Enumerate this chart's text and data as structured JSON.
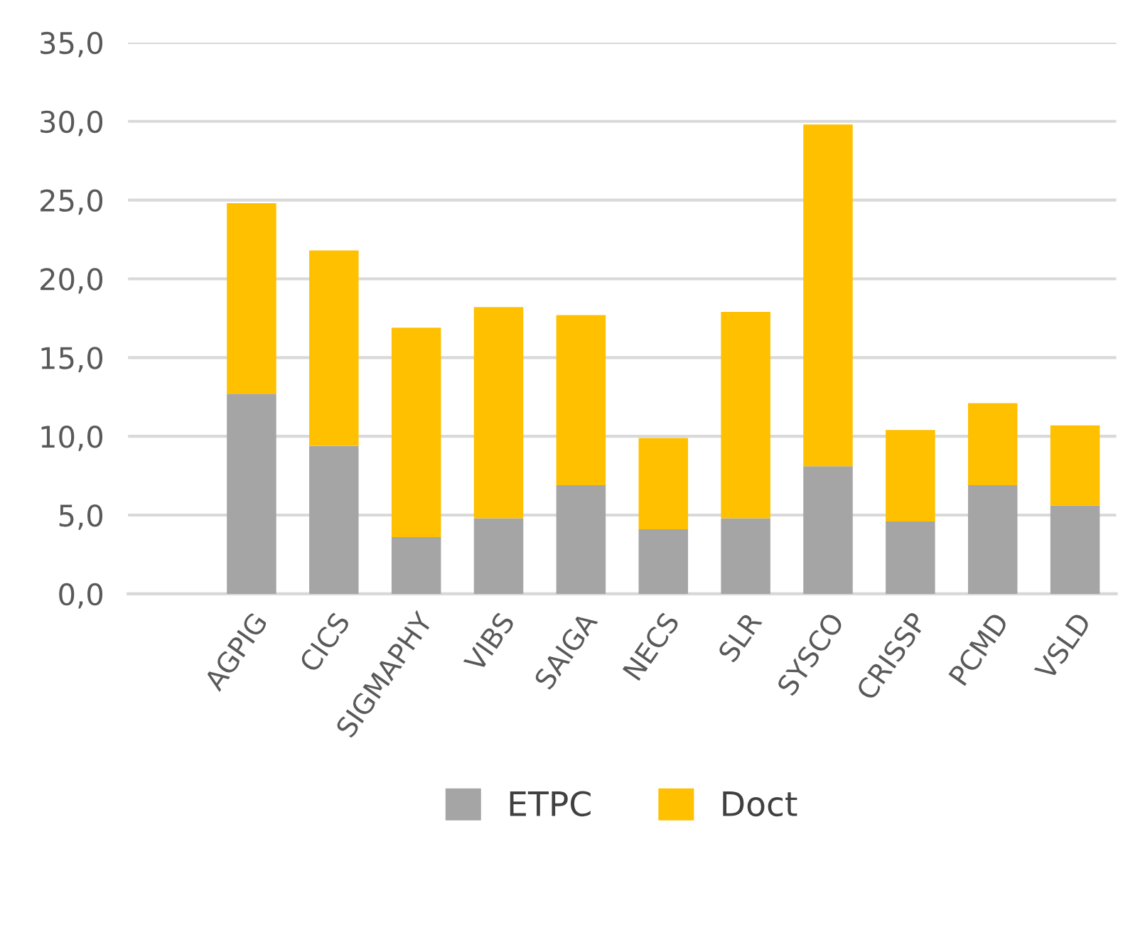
{
  "chart_data": {
    "type": "bar",
    "stacked": true,
    "categories": [
      "AGPIG",
      "CICS",
      "SIGMAPHY",
      "VIBS",
      "SAIGA",
      "NECS",
      "SLR",
      "SYSCO",
      "CRISSP",
      "PCMD",
      "VSLD"
    ],
    "series": [
      {
        "name": "ETPC",
        "color": "#a5a5a5",
        "values": [
          12.7,
          9.4,
          3.6,
          4.8,
          6.9,
          4.1,
          4.8,
          8.1,
          4.6,
          6.9,
          5.6
        ]
      },
      {
        "name": "Doct",
        "color": "#ffc000",
        "values": [
          12.1,
          12.4,
          13.3,
          13.4,
          10.8,
          5.8,
          13.1,
          21.7,
          5.8,
          5.2,
          5.1
        ]
      }
    ],
    "ylim": [
      0,
      35
    ],
    "yticks": [
      {
        "value": 0,
        "label": "0,0"
      },
      {
        "value": 5,
        "label": "5,0"
      },
      {
        "value": 10,
        "label": "10,0"
      },
      {
        "value": 15,
        "label": "15,0"
      },
      {
        "value": 20,
        "label": "20,0"
      },
      {
        "value": 25,
        "label": "25,0"
      },
      {
        "value": 30,
        "label": "30,0"
      },
      {
        "value": 35,
        "label": "35,0"
      }
    ],
    "grid": "y",
    "legend": "bottom"
  }
}
